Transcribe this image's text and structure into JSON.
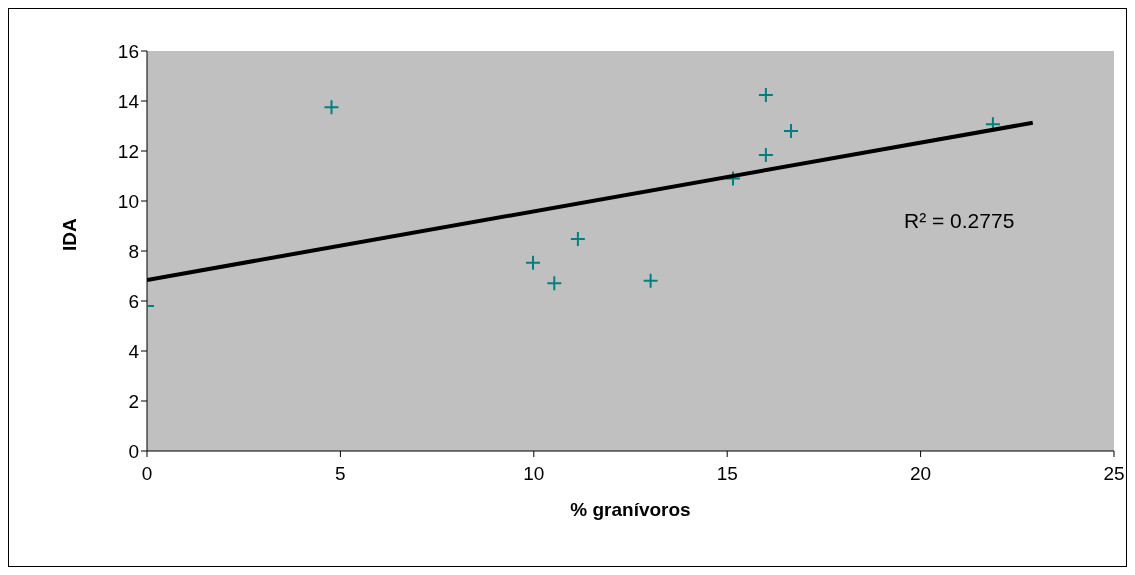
{
  "chart_data": {
    "type": "scatter",
    "xlabel": "% granívoros",
    "ylabel": "IDA",
    "xlim": [
      0,
      25
    ],
    "xticks": [
      0,
      5,
      10,
      15,
      20,
      25
    ],
    "ylim": [
      0,
      16
    ],
    "yticks": [
      0,
      2,
      4,
      6,
      8,
      10,
      12,
      14,
      16
    ],
    "grid": false,
    "legend": false,
    "marker": "cross",
    "series": [
      {
        "color": "#008080",
        "x": [
          0,
          4.77,
          16.0,
          16.65,
          16.0,
          15.15,
          11.14,
          9.98,
          10.53,
          13.02,
          21.87
        ],
        "values": [
          5.8,
          13.75,
          14.24,
          12.8,
          11.84,
          10.9,
          8.48,
          7.53,
          6.71,
          6.81,
          13.07
        ]
      },
      {
        "type": "line",
        "marker": "none",
        "color": "#000000",
        "x": [
          0,
          22.9
        ],
        "values": [
          6.84,
          13.13
        ]
      }
    ],
    "annotations": [
      "R² = 0.2775"
    ]
  }
}
